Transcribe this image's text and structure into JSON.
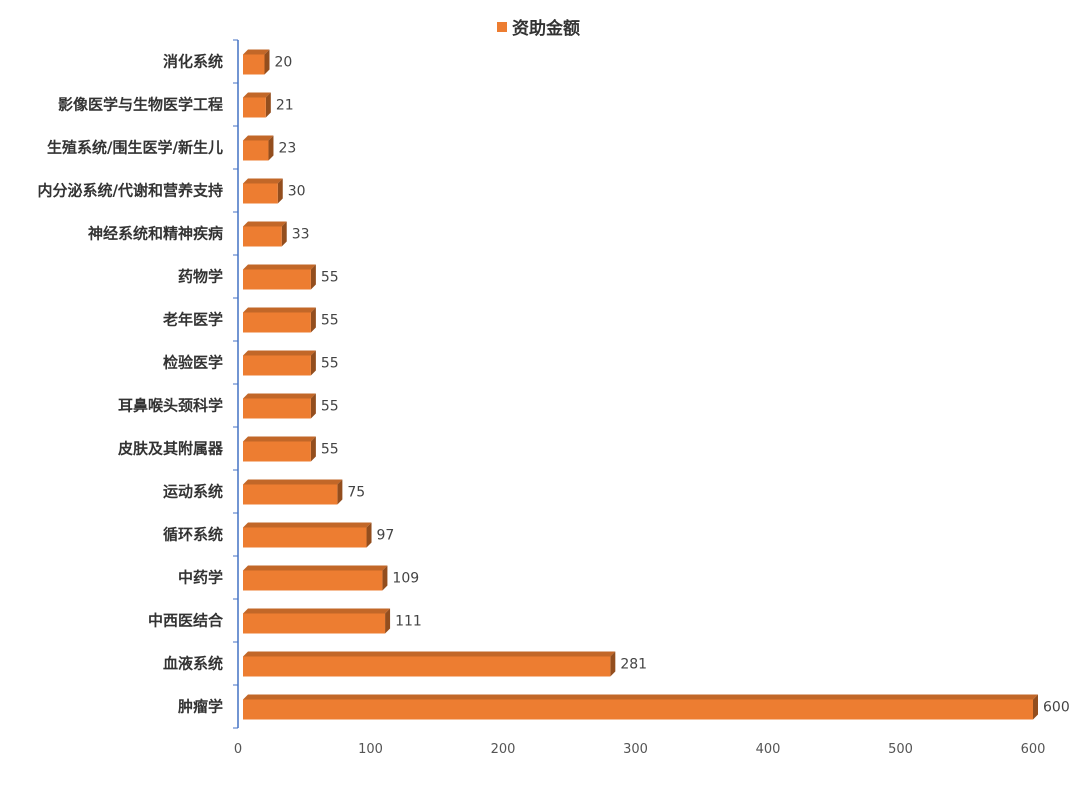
{
  "chart_data": {
    "type": "bar",
    "orientation": "horizontal",
    "categories": [
      "消化系统",
      "影像医学与生物医学工程",
      "生殖系统/围生医学/新生儿",
      "内分泌系统/代谢和营养支持",
      "神经系统和精神疾病",
      "药物学",
      "老年医学",
      "检验医学",
      "耳鼻喉头颈科学",
      "皮肤及其附属器",
      "运动系统",
      "循环系统",
      "中药学",
      "中西医结合",
      "血液系统",
      "肿瘤学"
    ],
    "series": [
      {
        "name": "资助金额",
        "values": [
          20,
          21,
          23,
          30,
          33,
          55,
          55,
          55,
          55,
          55,
          75,
          97,
          109,
          111,
          281,
          600
        ],
        "color": "#ED7D31"
      }
    ],
    "xlim": [
      0,
      600
    ],
    "xticks": [
      0,
      100,
      200,
      300,
      400,
      500,
      600
    ],
    "legend_position": "top",
    "grid": false,
    "data_labels": true,
    "bar_style": "3d",
    "axis_color": "#4472C4"
  }
}
